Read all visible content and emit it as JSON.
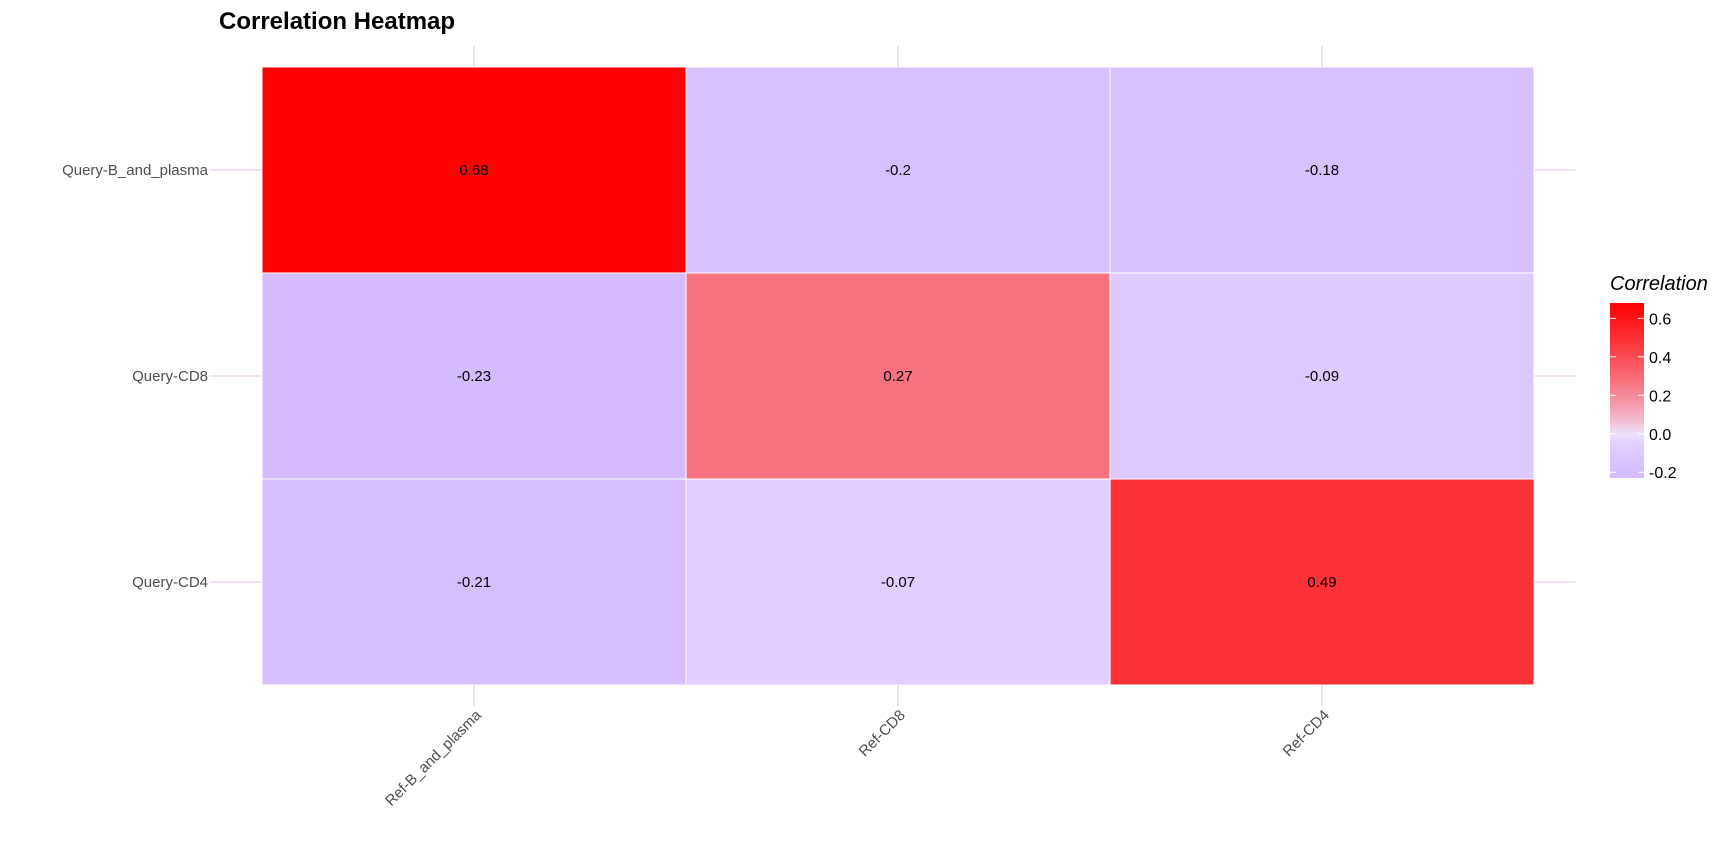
{
  "chart_data": {
    "type": "heatmap",
    "title": "Correlation Heatmap",
    "x_categories": [
      "Ref-B_and_plasma",
      "Ref-CD8",
      "Ref-CD4"
    ],
    "y_categories": [
      "Query-B_and_plasma",
      "Query-CD8",
      "Query-CD4"
    ],
    "values": [
      [
        0.68,
        -0.2,
        -0.18
      ],
      [
        -0.23,
        0.27,
        -0.09
      ],
      [
        -0.21,
        -0.07,
        0.49
      ]
    ],
    "cell_labels": [
      [
        "0.68",
        "-0.2",
        "-0.18"
      ],
      [
        "-0.23",
        "0.27",
        "-0.09"
      ],
      [
        "-0.21",
        "-0.07",
        "0.49"
      ]
    ],
    "legend": {
      "title": "Correlation",
      "placement": "right",
      "range": [
        -0.23,
        0.68
      ],
      "ticks": [
        0.6,
        0.4,
        0.2,
        0.0,
        -0.2
      ],
      "tick_labels": [
        "0.6",
        "0.4",
        "0.2",
        "0.0",
        "-0.2"
      ]
    },
    "color_scale": {
      "low": "#d6bcff",
      "mid": "#f0e6ff",
      "high": "#ff0000",
      "midpoint": 0
    },
    "grid": true,
    "xlabel": "",
    "ylabel": ""
  }
}
